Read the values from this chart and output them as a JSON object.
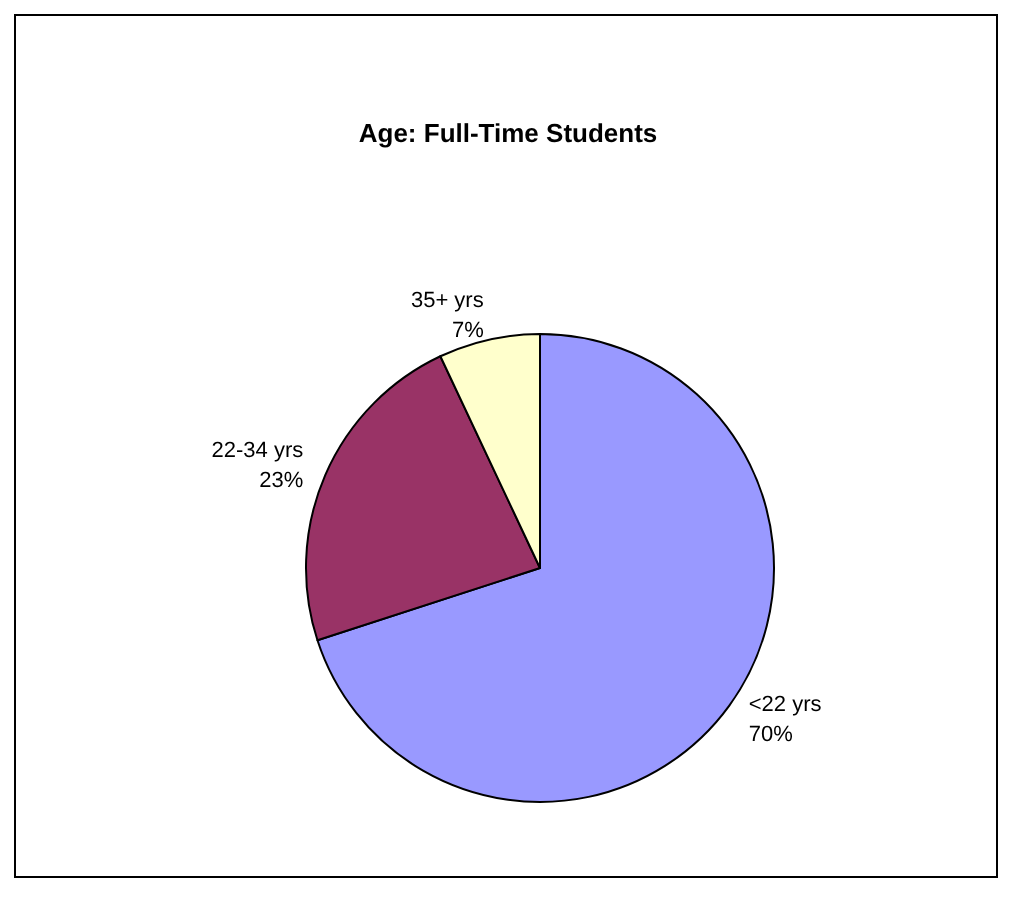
{
  "chart_data": {
    "type": "pie",
    "title": "Age: Full-Time Students",
    "categories": [
      "<22 yrs",
      "22-34 yrs",
      "35+ yrs"
    ],
    "values": [
      70,
      23,
      7
    ],
    "colors": [
      "#9999ff",
      "#993366",
      "#ffffcc"
    ],
    "value_labels": [
      "70%",
      "23%",
      "7%"
    ]
  }
}
